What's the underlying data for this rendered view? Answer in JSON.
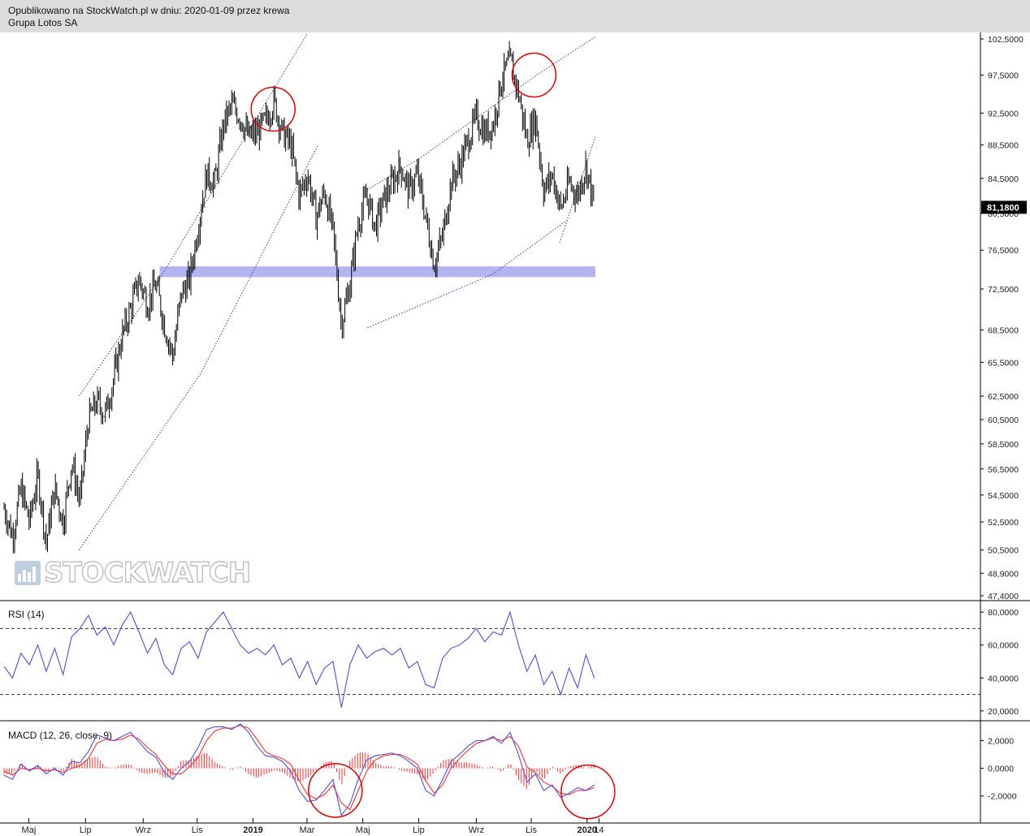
{
  "header": {
    "published": "Opublikowano na StockWatch.pl w dniu: 2020-01-09 przez krewa",
    "instrument": "Grupa Lotos SA"
  },
  "watermark": {
    "text": "STOCKWATCH",
    "icon": "bar-chart-icon"
  },
  "colors": {
    "header_bg": "#dcdcdc",
    "candle": "#000000",
    "trendline": "#3333cc",
    "support_zone": "#b4b4f0",
    "highlight_circle": "#e00000",
    "rsi_line": "#4f4fd8",
    "macd_line": "#4f4fd8",
    "signal_line": "#ff3030",
    "histogram": "#ff3030",
    "last_price_bg": "#000000"
  },
  "chart_data": [
    {
      "type": "candlestick",
      "title": "",
      "x_dates": [
        "2018-04-04",
        "2018-05-01",
        "2018-06-06",
        "2018-07-02",
        "2018-08-01",
        "2018-09-03",
        "2018-09-28",
        "2018-10-19",
        "2018-11-05",
        "2018-12-03",
        "2019-01-02",
        "2019-02-06",
        "2019-03-01",
        "2019-04-08",
        "2019-05-06",
        "2019-06-05",
        "2019-07-01",
        "2019-08-01",
        "2019-09-02",
        "2019-09-30",
        "2019-10-31",
        "2019-11-15",
        "2019-11-25",
        "2019-12-09",
        "2019-12-30",
        "2020-01-09"
      ],
      "x_ticks": [
        "Maj",
        "Lip",
        "Wrz",
        "Lis",
        "2019",
        "Mar",
        "Maj",
        "Lip",
        "Wrz",
        "Lis",
        "2020",
        "14"
      ],
      "y_ticks": [
        "102,5000",
        "97,5000",
        "92,5000",
        "88,5000",
        "84,5000",
        "80,5000",
        "76,5000",
        "72,5000",
        "68,5000",
        "65,5000",
        "62,5000",
        "60,5000",
        "58,5000",
        "56,5000",
        "54,5000",
        "52,5000",
        "50,5000",
        "48,9000",
        "47,4000"
      ],
      "y_range": [
        47.4,
        102.5
      ],
      "y_scale": "log",
      "last_price": "81,1800",
      "close_path": [
        53.5,
        51.5,
        55.0,
        52.5,
        56.0,
        51.0,
        55.0,
        52.5,
        57.0,
        54.0,
        60.5,
        62.0,
        61.0,
        64.0,
        68.0,
        70.5,
        73.5,
        71.0,
        73.0,
        69.0,
        66.0,
        72.0,
        73.5,
        79.0,
        85.0,
        84.0,
        91.0,
        93.5,
        92.0,
        89.5,
        90.0,
        91.5,
        94.0,
        90.0,
        88.5,
        82.5,
        85.0,
        80.0,
        83.0,
        78.5,
        69.0,
        73.0,
        79.5,
        82.5,
        79.0,
        82.0,
        84.0,
        86.0,
        83.0,
        85.0,
        80.0,
        75.0,
        78.0,
        84.0,
        86.0,
        89.0,
        92.0,
        90.0,
        91.0,
        97.0,
        99.5,
        95.0,
        89.0,
        92.0,
        83.0,
        85.0,
        81.0,
        84.0,
        82.5,
        86.0,
        81.18
      ],
      "annotations": {
        "channel_1_lower": [
          [
            "2018-06-25",
            50.5
          ],
          [
            "2018-11-05",
            64.5
          ],
          [
            "2019-03-13",
            88.5
          ]
        ],
        "channel_1_upper": [
          [
            "2018-06-25",
            62.5
          ],
          [
            "2018-09-21",
            73.5
          ],
          [
            "2019-03-01",
            103.2
          ]
        ],
        "channel_2_lower": [
          [
            "2019-05-06",
            68.7
          ],
          [
            "2019-09-20",
            74.0
          ],
          [
            "2019-12-11",
            79.8
          ]
        ],
        "channel_2_upper": [
          [
            "2019-05-06",
            83.2
          ],
          [
            "2019-07-01",
            86.8
          ],
          [
            "2019-11-07",
            97.5
          ],
          [
            "2020-01-10",
            102.8
          ]
        ],
        "channel_3": [
          [
            "2019-12-02",
            77.3
          ],
          [
            "2020-01-10",
            89.5
          ]
        ],
        "support_zone": [
          73.7,
          74.8
        ],
        "support_zone_dates": [
          "2018-09-21",
          "2020-01-10"
        ],
        "circles": [
          [
            "2019-01-23",
            93.0
          ],
          [
            "2019-11-04",
            97.5
          ]
        ]
      }
    },
    {
      "type": "line",
      "title": "RSI (14)",
      "y_ticks": [
        "80,0000",
        "60,0000",
        "40,0000",
        "20,0000"
      ],
      "y_range": [
        15,
        85
      ],
      "reference_lines": [
        70,
        30
      ],
      "values": [
        47,
        40,
        55,
        48,
        60,
        44,
        58,
        42,
        65,
        70,
        78,
        66,
        71,
        60,
        72,
        80,
        68,
        55,
        64,
        48,
        42,
        58,
        62,
        52,
        68,
        74,
        80,
        70,
        60,
        55,
        58,
        54,
        60,
        48,
        52,
        40,
        50,
        36,
        46,
        50,
        22,
        48,
        60,
        52,
        56,
        58,
        54,
        58,
        46,
        50,
        36,
        34,
        52,
        58,
        60,
        64,
        70,
        62,
        68,
        66,
        80,
        60,
        44,
        54,
        36,
        44,
        30,
        46,
        34,
        54,
        40
      ]
    },
    {
      "type": "line",
      "title": "MACD (12, 26, close, 9)",
      "y_ticks": [
        "2,0000",
        "0,0000",
        "-2,0000"
      ],
      "y_range": [
        -3.6,
        3.2
      ],
      "series": [
        {
          "values": [
            -0.5,
            -0.8,
            0.3,
            -0.2,
            0.2,
            -0.4,
            0.0,
            -0.5,
            0.5,
            0.4,
            1.2,
            2.4,
            2.2,
            2.0,
            2.3,
            2.6,
            1.9,
            1.2,
            0.8,
            -0.3,
            -0.8,
            0.0,
            0.5,
            1.5,
            2.8,
            3.0,
            3.0,
            2.8,
            3.2,
            2.6,
            1.6,
            0.9,
            0.8,
            0.5,
            -0.2,
            -1.6,
            -2.4,
            -2.3,
            -1.6,
            -0.8,
            -3.4,
            -2.6,
            -0.8,
            0.6,
            0.9,
            1.0,
            1.1,
            0.9,
            0.5,
            0.0,
            -1.6,
            -2.0,
            -0.8,
            0.5,
            1.0,
            1.6,
            2.0,
            2.0,
            2.3,
            1.8,
            2.6,
            1.0,
            -1.0,
            -0.4,
            -1.6,
            -1.2,
            -2.1,
            -1.8,
            -1.4,
            -1.6,
            -1.2
          ]
        },
        {
          "values": [
            -0.2,
            -0.5,
            0.0,
            -0.1,
            0.0,
            -0.2,
            -0.1,
            -0.3,
            0.0,
            0.2,
            0.7,
            1.8,
            2.1,
            2.0,
            2.1,
            2.4,
            2.1,
            1.5,
            1.0,
            0.2,
            -0.4,
            -0.4,
            0.1,
            0.8,
            2.0,
            2.7,
            2.9,
            2.9,
            3.1,
            2.9,
            2.1,
            1.2,
            0.9,
            0.7,
            0.3,
            -0.9,
            -1.9,
            -2.2,
            -1.9,
            -1.2,
            -2.5,
            -3.0,
            -1.6,
            -0.2,
            0.6,
            0.9,
            1.0,
            1.0,
            0.7,
            0.3,
            -0.9,
            -1.8,
            -1.2,
            0.0,
            0.7,
            1.3,
            1.8,
            2.0,
            2.2,
            2.0,
            2.3,
            1.6,
            0.1,
            -0.3,
            -1.0,
            -1.3,
            -1.8,
            -1.9,
            -1.6,
            -1.6,
            -1.4
          ]
        }
      ],
      "annotations": {
        "circles": [
          [
            "2019-04-01",
            -1.6
          ],
          [
            "2020-01-02",
            -1.7
          ]
        ]
      }
    }
  ]
}
